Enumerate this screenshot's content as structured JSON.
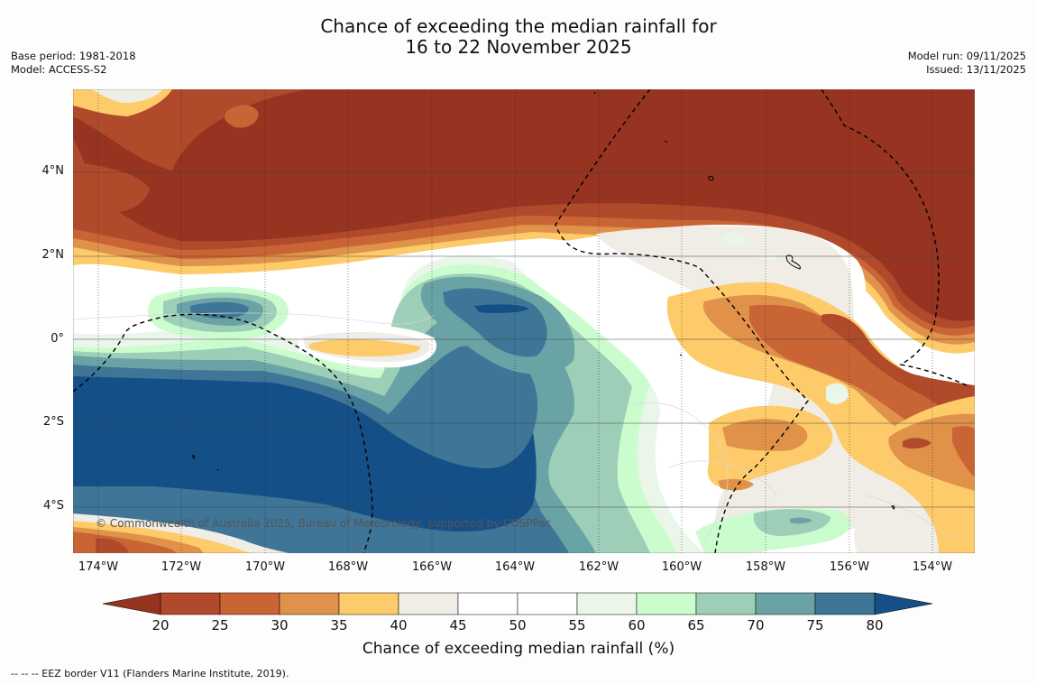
{
  "title": {
    "line1": "Chance of exceeding the median rainfall for",
    "line2": "16 to 22 November 2025"
  },
  "meta_left": {
    "base_period": "Base period: 1981-2018",
    "model": "Model: ACCESS-S2"
  },
  "meta_right": {
    "model_run": "Model run: 09/11/2025",
    "issued": "Issued: 13/11/2025"
  },
  "map": {
    "copyright": "© Commonwealth of Australia 2025, Bureau of Meteorology, supported by COSPPac",
    "lat_labels": [
      "4°N",
      "2°N",
      "0°",
      "2°S",
      "4°S"
    ],
    "lon_labels": [
      "174°W",
      "172°W",
      "170°W",
      "168°W",
      "166°W",
      "164°W",
      "162°W",
      "160°W",
      "158°W",
      "156°W",
      "154°W"
    ],
    "extent": {
      "lon_min": -174.6,
      "lon_max": -153.0,
      "lat_min": -5.2,
      "lat_max": 5.9
    }
  },
  "colorbar": {
    "label": "Chance of exceeding median rainfall (%)",
    "ticks": [
      "20",
      "25",
      "30",
      "35",
      "40",
      "45",
      "50",
      "55",
      "60",
      "65",
      "70",
      "75",
      "80"
    ],
    "colors": {
      "lt20": "#963321",
      "c20_25": "#b04a2a",
      "c25_30": "#c96434",
      "c30_35": "#e0914a",
      "c35_40": "#fecb6a",
      "c40_45": "#f0ece6",
      "c45_50": "#ffffff",
      "c50_55": "#ffffff",
      "c55_60": "#ebf6eb",
      "c60_65": "#cbfcce",
      "c65_70": "#9dcfb8",
      "c70_75": "#6aa3a6",
      "c75_80": "#3f7596",
      "gt80": "#154f88"
    }
  },
  "footnote": "-- -- -- EEZ border V11 (Flanders Marine Institute, 2019)."
}
